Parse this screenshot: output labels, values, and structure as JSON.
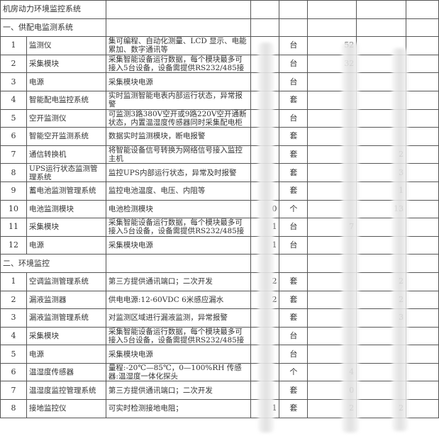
{
  "title": "机房动力环境监控系统",
  "sections": [
    {
      "heading": "一、供配电监测系统",
      "rows": [
        {
          "no": "1",
          "name": "监测仪",
          "desc": "集可编程、自动化测量、LCD 显示、电能累加、数字通讯等",
          "qty": "",
          "unit": "台",
          "price": "52",
          "total": ""
        },
        {
          "no": "2",
          "name": "采集模块",
          "desc": "采集智能设备运行数据，每个模块最多可接入5台设备，设备需提供RS232/485接",
          "qty": "",
          "unit": "台",
          "price": "32",
          "total": ""
        },
        {
          "no": "3",
          "name": "电源",
          "desc": "采集模块电源",
          "qty": "",
          "unit": "台",
          "price": "",
          "total": ""
        },
        {
          "no": "4",
          "name": "智能配电监控系统",
          "desc": "实时监测智能电表内部运行状态，异常报警",
          "qty": "",
          "unit": "套",
          "price": "",
          "total": ""
        },
        {
          "no": "5",
          "name": "空开监测仪",
          "desc": "可监测3路380V空开或9路220V空开通断状态，内置温湿度传感器同时采集配电柜内",
          "qty": "",
          "unit": "台",
          "price": "",
          "total": ""
        },
        {
          "no": "6",
          "name": "智能空开监测系统",
          "desc": "数据实时监测模块，断电报警",
          "qty": "",
          "unit": "套",
          "price": "",
          "total": ""
        },
        {
          "no": "7",
          "name": "通信转换机",
          "desc": "将智能设备信号转换为网络信号接入监控主机",
          "qty": "",
          "unit": "套",
          "price": "",
          "total": "2"
        },
        {
          "no": "8",
          "name": "UPS运行状态监测管理系统",
          "desc": "监控UPS内部运行状态，异常及时报警",
          "qty": "",
          "unit": "套",
          "price": "",
          "total": "3"
        },
        {
          "no": "9",
          "name": "蓄电池监测管理系统",
          "desc": "监控电池温度、电压、内阻等",
          "qty": "",
          "unit": "套",
          "price": "",
          "total": "1"
        },
        {
          "no": "10",
          "name": "电池监测模块",
          "desc": "电池检测模块",
          "qty": "0",
          "unit": "个",
          "price": "",
          "total": "13"
        },
        {
          "no": "11",
          "name": "采集模块",
          "desc": "采集智能设备运行数据，每个模块最多可接入5台设备，设备需提供RS232/485接",
          "qty": "1",
          "unit": "台",
          "price": "7",
          "total": ""
        },
        {
          "no": "12",
          "name": "电源",
          "desc": "采集模块电源",
          "qty": "1",
          "unit": "台",
          "price": "",
          "total": ""
        }
      ]
    },
    {
      "heading": "二、环境监控",
      "rows": [
        {
          "no": "1",
          "name": "空调监测管理系统",
          "desc": "第三方提供通讯端口；二次开发",
          "qty": "2",
          "unit": "套",
          "price": "",
          "total": "2"
        },
        {
          "no": "2",
          "name": "漏液监测器",
          "desc": "供电电源:12-60VDC 6米感应漏水",
          "qty": "2",
          "unit": "套",
          "price": "",
          "total": "2"
        },
        {
          "no": "3",
          "name": "漏液监测管理系统",
          "desc": "对监测区域进行漏液监测，异常报警",
          "qty": "",
          "unit": "套",
          "price": "",
          "total": "3"
        },
        {
          "no": "4",
          "name": "采集模块",
          "desc": "采集智能设备运行数据，每个模块最多可接入5台设备，设备需提供RS232/485接",
          "qty": "",
          "unit": "台",
          "price": "",
          "total": ""
        },
        {
          "no": "5",
          "name": "电源",
          "desc": "采集模块电源",
          "qty": "",
          "unit": "台",
          "price": "",
          "total": ""
        },
        {
          "no": "6",
          "name": "温湿度传感器",
          "desc": "量程:-20℃—85℃，0—100%RH 传感器:温湿度一体化探头",
          "qty": "",
          "unit": "个",
          "price": "4",
          "total": ""
        },
        {
          "no": "7",
          "name": "温湿度监控管理系统",
          "desc": "第三方提供通讯端口；二次开发",
          "qty": "",
          "unit": "套",
          "price": "0",
          "total": ""
        },
        {
          "no": "8",
          "name": "接地监控仪",
          "desc": "可实时检测接地电阻；",
          "qty": "1",
          "unit": "套",
          "price": "2",
          "total": "2"
        }
      ]
    }
  ]
}
